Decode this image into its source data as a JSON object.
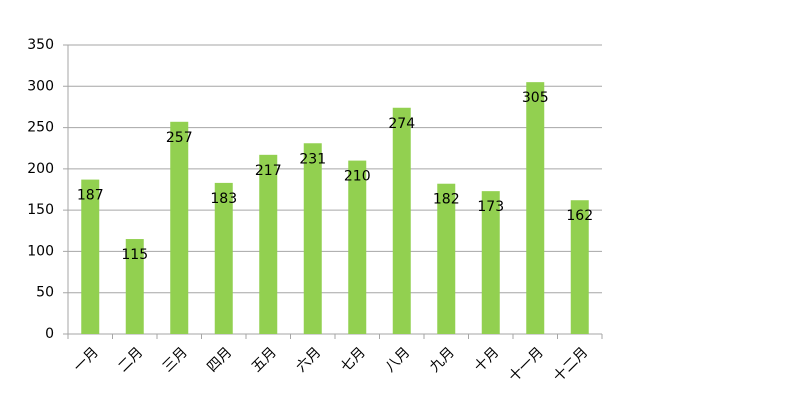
{
  "chart_data": {
    "type": "bar",
    "categories": [
      "一月",
      "二月",
      "三月",
      "四月",
      "五月",
      "六月",
      "七月",
      "八月",
      "九月",
      "十月",
      "十一月",
      "十二月"
    ],
    "values": [
      187,
      115,
      257,
      183,
      217,
      231,
      210,
      274,
      182,
      173,
      305,
      162
    ],
    "color": "#92d050",
    "ylim": [
      0,
      350
    ],
    "yticks": [
      0,
      50,
      100,
      150,
      200,
      250,
      300,
      350
    ],
    "grid": true
  }
}
